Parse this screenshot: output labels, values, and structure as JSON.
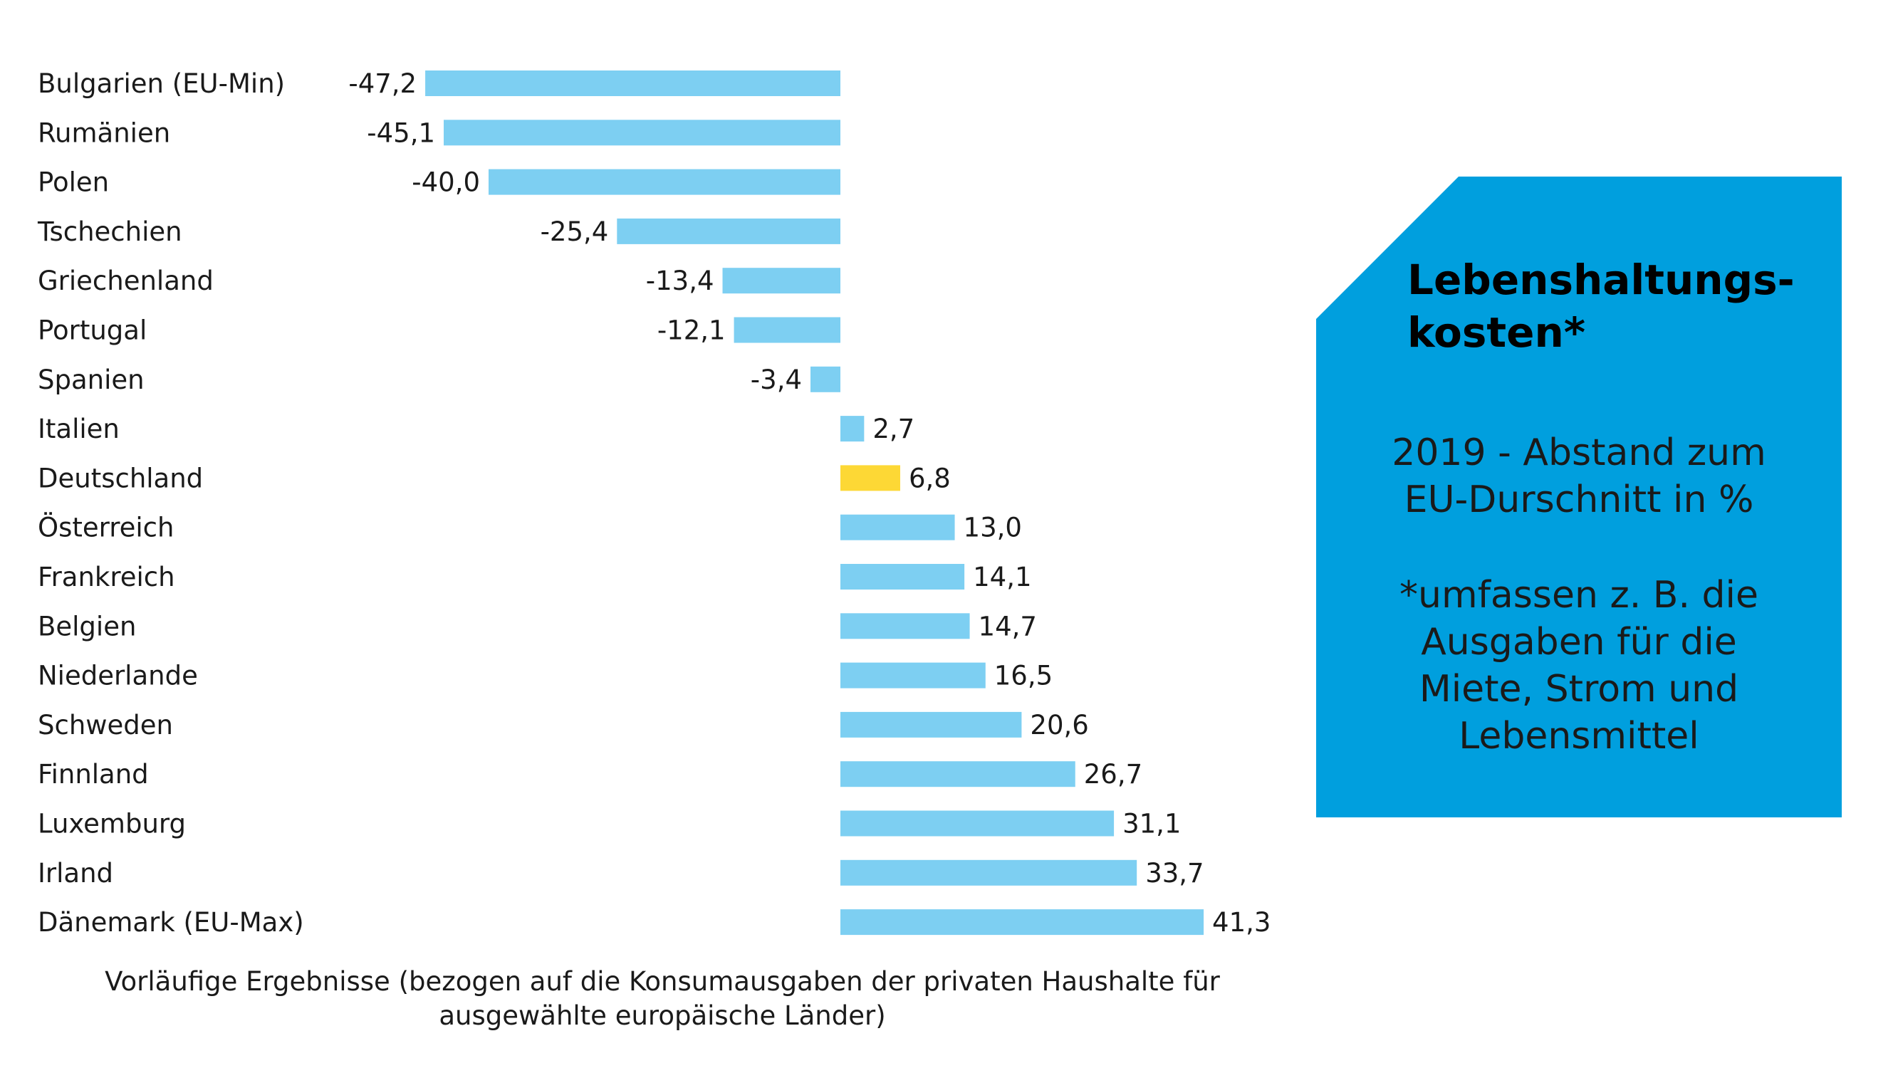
{
  "chart_data": {
    "type": "bar",
    "orientation": "horizontal",
    "categories": [
      "Bulgarien (EU-Min)",
      "Rumänien",
      "Polen",
      "Tschechien",
      "Griechenland",
      "Portugal",
      "Spanien",
      "Italien",
      "Deutschland",
      "Österreich",
      "Frankreich",
      "Belgien",
      "Niederlande",
      "Schweden",
      "Finnland",
      "Luxemburg",
      "Irland",
      "Dänemark (EU-Max)"
    ],
    "values": [
      -47.2,
      -45.1,
      -40.0,
      -25.4,
      -13.4,
      -12.1,
      -3.4,
      2.7,
      6.8,
      13.0,
      14.1,
      14.7,
      16.5,
      20.6,
      26.7,
      31.1,
      33.7,
      41.3
    ],
    "value_labels": [
      "-47,2",
      "-45,1",
      "-40,0",
      "-25,4",
      "-13,4",
      "-12,1",
      "-3,4",
      "2,7",
      "6,8",
      "13,0",
      "14,1",
      "14,7",
      "16,5",
      "20,6",
      "26,7",
      "31,1",
      "33,7",
      "41,3"
    ],
    "highlight_category": "Deutschland",
    "colors": {
      "bar": "#7dcff2",
      "highlight": "#fdd835"
    },
    "grid": false,
    "legend": "none"
  },
  "panel": {
    "title": "Lebenshaltungs-\nkosten*",
    "subtitle": "2019 - Abstand zum\nEU-Durschnitt in %",
    "note": "*umfassen z. B. die\nAusgaben für die\nMiete, Strom und\nLebensmittel",
    "color": "#009fde"
  },
  "footnote": "Vorläufige Ergebnisse (bezogen auf die Konsumausgaben der privaten Haushalte für\nausgewählte europäische Länder)"
}
